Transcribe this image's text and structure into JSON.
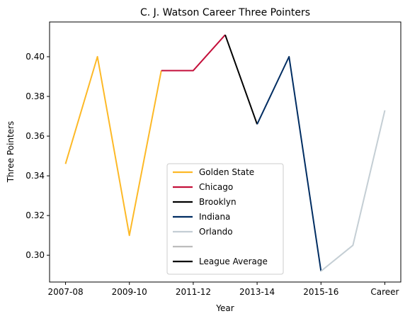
{
  "chart_data": {
    "type": "line",
    "title": "C. J. Watson Career Three Pointers",
    "xlabel": "Year",
    "ylabel": "Three Pointers",
    "ylim": [
      0.2865,
      0.4175
    ],
    "xlim": [
      -0.5,
      10.5
    ],
    "x_ticks": [
      {
        "pos": 0,
        "label": "2007-08"
      },
      {
        "pos": 2,
        "label": "2009-10"
      },
      {
        "pos": 4,
        "label": "2011-12"
      },
      {
        "pos": 6,
        "label": "2013-14"
      },
      {
        "pos": 8,
        "label": "2015-16"
      },
      {
        "pos": 10,
        "label": "Career"
      }
    ],
    "y_ticks": [
      0.3,
      0.32,
      0.34,
      0.36,
      0.38,
      0.4
    ],
    "y_tick_labels": [
      "0.30",
      "0.32",
      "0.34",
      "0.36",
      "0.38",
      "0.40"
    ],
    "grid": false,
    "legend_position": "lower-center",
    "series": [
      {
        "name": "Golden State",
        "color": "#FDB927",
        "x": [
          0,
          1,
          2,
          3
        ],
        "values": [
          0.346,
          0.4,
          0.31,
          0.393
        ]
      },
      {
        "name": "Chicago",
        "color": "#C4103B",
        "x": [
          3,
          4,
          5
        ],
        "values": [
          0.393,
          0.393,
          0.411
        ]
      },
      {
        "name": "Brooklyn",
        "color": "#000000",
        "x": [
          5,
          6
        ],
        "values": [
          0.411,
          0.366
        ]
      },
      {
        "name": "Indiana",
        "color": "#002D62",
        "x": [
          6,
          7,
          8
        ],
        "values": [
          0.366,
          0.4,
          0.292
        ]
      },
      {
        "name": "Orlando",
        "color": "#C4CED4",
        "x": [
          8,
          9,
          10
        ],
        "values": [
          0.292,
          0.305,
          0.373
        ]
      },
      {
        "name": "",
        "color": "#BDBDBD",
        "x": [],
        "values": []
      },
      {
        "name": "League Average",
        "color": "#000000",
        "x": [],
        "values": []
      }
    ]
  }
}
